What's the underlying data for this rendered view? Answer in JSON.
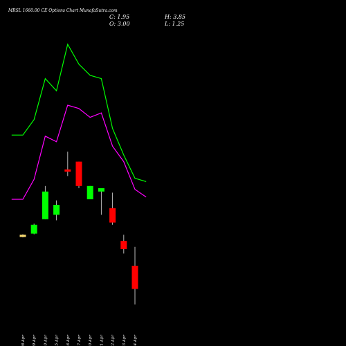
{
  "chart_data": {
    "type": "candlestick",
    "title": "MRSL 1660.00 CE Options Chart MunafaSutra.com",
    "info": {
      "close_label": "C: 1.95",
      "open_label": "O: 3.00",
      "high_label": "H: 3.85",
      "low_label": "L: 1.25"
    },
    "dates": [
      "08 Apr",
      "09 Apr",
      "10 Apr",
      "15 Apr",
      "16 Apr",
      "17 Apr",
      "20 Apr",
      "21 Apr",
      "22 Apr",
      "23 Apr",
      "24 Apr"
    ],
    "candles": [
      {
        "open": 4.3,
        "close": 4.4,
        "high": 4.42,
        "low": 4.28,
        "color": "#f5d76e"
      },
      {
        "open": 4.45,
        "close": 4.85,
        "high": 4.9,
        "low": 4.42,
        "color": "#00ff00"
      },
      {
        "open": 5.1,
        "close": 6.35,
        "high": 6.6,
        "low": 5.1,
        "color": "#00ff00"
      },
      {
        "open": 5.3,
        "close": 5.75,
        "high": 5.95,
        "low": 5.05,
        "color": "#00ff00"
      },
      {
        "open": 7.35,
        "close": 7.25,
        "high": 8.15,
        "low": 7.05,
        "color": "#ff0000"
      },
      {
        "open": 7.7,
        "close": 6.6,
        "high": 7.7,
        "low": 6.5,
        "color": "#ff0000"
      },
      {
        "open": 6.6,
        "close": 6.0,
        "high": 6.6,
        "low": 6.0,
        "color": "#00ff00"
      },
      {
        "open": 6.5,
        "close": 6.35,
        "high": 6.5,
        "low": 5.3,
        "color": "#00ff00"
      },
      {
        "open": 5.6,
        "close": 4.95,
        "high": 6.3,
        "low": 4.85,
        "color": "#ff0000"
      },
      {
        "open": 4.12,
        "close": 3.75,
        "high": 4.4,
        "low": 3.55,
        "color": "#ff0000"
      },
      {
        "open": 3.0,
        "close": 1.95,
        "high": 3.85,
        "low": 1.25,
        "color": "#ff0000"
      }
    ],
    "upper_band": {
      "color": "#00ff00",
      "x": [
        -1.0,
        0.0,
        1.0,
        2.0,
        3.0,
        4.0,
        5.0,
        6.0,
        7.0,
        8.0,
        9.0,
        10.0,
        11.0
      ],
      "values": [
        8.9,
        8.9,
        9.6,
        11.45,
        10.9,
        13.0,
        12.1,
        11.6,
        11.45,
        9.2,
        8.0,
        6.95,
        6.8
      ]
    },
    "lower_band": {
      "color": "#ff00ff",
      "x": [
        -1.0,
        0.0,
        1.0,
        2.0,
        3.0,
        4.0,
        5.0,
        6.0,
        7.0,
        8.0,
        9.0,
        10.0,
        11.0
      ],
      "values": [
        6.0,
        6.0,
        6.9,
        8.85,
        8.6,
        10.25,
        10.1,
        9.7,
        9.9,
        8.4,
        7.7,
        6.45,
        6.1
      ]
    },
    "grid": false
  }
}
